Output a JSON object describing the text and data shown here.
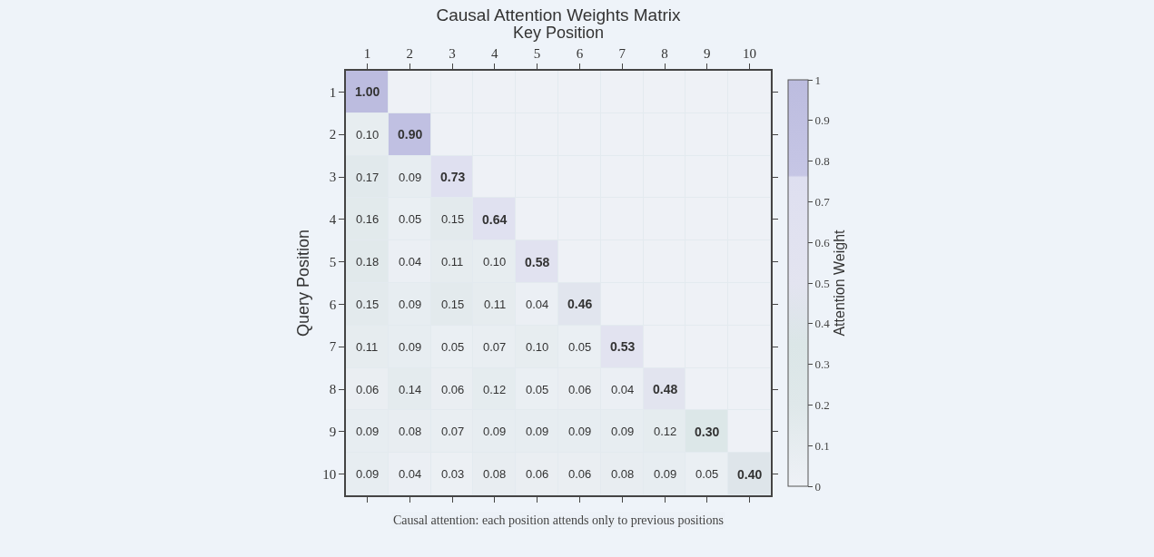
{
  "chart_data": {
    "type": "heatmap",
    "title": "Causal Attention Weights Matrix",
    "xlabel": "Key Position",
    "ylabel": "Query Position",
    "clabel": "Attention Weight",
    "categories": [
      "1",
      "2",
      "3",
      "4",
      "5",
      "6",
      "7",
      "8",
      "9",
      "10"
    ],
    "y_categories": [
      "1",
      "2",
      "3",
      "4",
      "5",
      "6",
      "7",
      "8",
      "9",
      "10"
    ],
    "cells": [
      [
        1.0,
        0,
        0,
        0,
        0,
        0,
        0,
        0,
        0,
        0
      ],
      [
        0.1,
        0.9,
        0,
        0,
        0,
        0,
        0,
        0,
        0,
        0
      ],
      [
        0.17,
        0.09,
        0.73,
        0,
        0,
        0,
        0,
        0,
        0,
        0
      ],
      [
        0.16,
        0.05,
        0.15,
        0.64,
        0,
        0,
        0,
        0,
        0,
        0
      ],
      [
        0.18,
        0.04,
        0.11,
        0.1,
        0.58,
        0,
        0,
        0,
        0,
        0
      ],
      [
        0.15,
        0.09,
        0.15,
        0.11,
        0.04,
        0.46,
        0,
        0,
        0,
        0
      ],
      [
        0.11,
        0.09,
        0.05,
        0.07,
        0.1,
        0.05,
        0.53,
        0,
        0,
        0
      ],
      [
        0.06,
        0.14,
        0.06,
        0.12,
        0.05,
        0.06,
        0.04,
        0.48,
        0,
        0
      ],
      [
        0.09,
        0.08,
        0.07,
        0.09,
        0.09,
        0.09,
        0.09,
        0.12,
        0.3,
        0
      ],
      [
        0.09,
        0.04,
        0.03,
        0.08,
        0.06,
        0.06,
        0.08,
        0.09,
        0.05,
        0.4
      ]
    ],
    "cell_labels": [
      [
        "1.00",
        null,
        null,
        null,
        null,
        null,
        null,
        null,
        null,
        null
      ],
      [
        "0.10",
        "0.90",
        null,
        null,
        null,
        null,
        null,
        null,
        null,
        null
      ],
      [
        "0.17",
        "0.09",
        "0.73",
        null,
        null,
        null,
        null,
        null,
        null,
        null
      ],
      [
        "0.16",
        "0.05",
        "0.15",
        "0.64",
        null,
        null,
        null,
        null,
        null,
        null
      ],
      [
        "0.18",
        "0.04",
        "0.11",
        "0.10",
        "0.58",
        null,
        null,
        null,
        null,
        null
      ],
      [
        "0.15",
        "0.09",
        "0.15",
        "0.11",
        "0.04",
        "0.46",
        null,
        null,
        null,
        null
      ],
      [
        "0.11",
        "0.09",
        "0.05",
        "0.07",
        "0.10",
        "0.05",
        "0.53",
        null,
        null,
        null
      ],
      [
        "0.06",
        "0.14",
        "0.06",
        "0.12",
        "0.05",
        "0.06",
        "0.04",
        "0.48",
        null,
        null
      ],
      [
        "0.09",
        "0.08",
        "0.07",
        "0.09",
        "0.09",
        "0.09",
        "0.09",
        "0.12",
        "0.30",
        null
      ],
      [
        "0.09",
        "0.04",
        "0.03",
        "0.08",
        "0.06",
        "0.06",
        "0.08",
        "0.09",
        "0.05",
        "0.40"
      ]
    ],
    "clim": [
      0,
      1
    ],
    "cticks": [
      0,
      0.1,
      0.2,
      0.3,
      0.4,
      0.5,
      0.6,
      0.7,
      0.8,
      0.9,
      1
    ],
    "annotations": [
      "Causal attention: each position attends only to previous positions"
    ]
  }
}
